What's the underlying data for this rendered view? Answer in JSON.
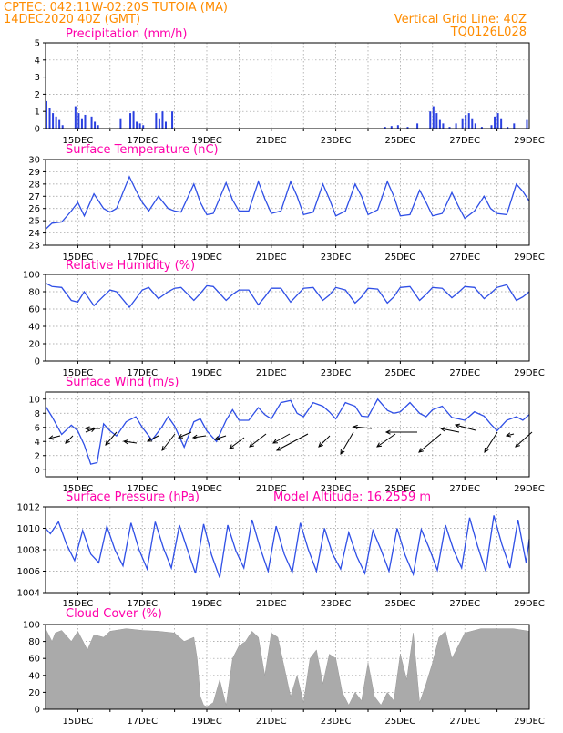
{
  "header": {
    "line1": "CPTEC:   042:11W-02:20S   TUTOIA (MA)",
    "line2": "14DEC2020 40Z (GMT)",
    "grid_note": "Vertical Grid Line: 40Z",
    "code": "TQ0126L028"
  },
  "x_axis": {
    "start_day": 14,
    "end_day": 29,
    "tick_labels": [
      "15DEC",
      "17DEC",
      "19DEC",
      "21DEC",
      "23DEC",
      "25DEC",
      "27DEC",
      "29DEC"
    ],
    "tick_days": [
      15,
      17,
      19,
      21,
      23,
      25,
      27,
      29
    ]
  },
  "colors": {
    "line": "#2f4fe6",
    "bar": "#2a40e0",
    "cloud": "#aaaaaa",
    "header": "#ff8c00",
    "title": "#ff00aa"
  },
  "chart_data": [
    {
      "type": "bar",
      "title": "Precipitation (mm/h)",
      "ylim": [
        0,
        5
      ],
      "yticks": [
        "0",
        "1",
        "2",
        "3",
        "4",
        "5"
      ],
      "grid": true,
      "x": [
        14.0,
        14.1,
        14.2,
        14.3,
        14.4,
        14.5,
        14.9,
        15.0,
        15.1,
        15.2,
        15.4,
        15.5,
        15.6,
        16.3,
        16.6,
        16.7,
        16.8,
        16.9,
        17.0,
        17.4,
        17.5,
        17.6,
        17.7,
        17.9,
        24.5,
        24.7,
        24.9,
        25.2,
        25.5,
        25.9,
        26.0,
        26.1,
        26.2,
        26.3,
        26.5,
        26.7,
        26.9,
        27.0,
        27.1,
        27.2,
        27.3,
        27.5,
        27.8,
        27.9,
        28.0,
        28.1,
        28.3,
        28.5,
        28.9
      ],
      "values": [
        1.6,
        1.2,
        0.9,
        0.7,
        0.5,
        0.2,
        1.3,
        0.9,
        0.6,
        0.8,
        0.7,
        0.4,
        0.2,
        0.6,
        0.9,
        1.0,
        0.4,
        0.3,
        0.2,
        0.9,
        0.6,
        1.0,
        0.4,
        1.0,
        0.1,
        0.15,
        0.2,
        0.1,
        0.3,
        1.0,
        1.3,
        0.9,
        0.5,
        0.3,
        0.1,
        0.3,
        0.6,
        0.8,
        0.9,
        0.6,
        0.3,
        0.1,
        0.2,
        0.7,
        0.9,
        0.6,
        0.1,
        0.3,
        0.5
      ]
    },
    {
      "type": "line",
      "title": "Surface Temperature (nC)",
      "ylim": [
        23,
        30
      ],
      "yticks": [
        "23",
        "24",
        "25",
        "26",
        "27",
        "28",
        "29",
        "30"
      ],
      "grid": true,
      "x": [
        14.0,
        14.2,
        14.5,
        14.8,
        15.0,
        15.2,
        15.5,
        15.8,
        16.0,
        16.2,
        16.6,
        16.8,
        17.0,
        17.2,
        17.5,
        17.8,
        18.0,
        18.2,
        18.6,
        18.8,
        19.0,
        19.2,
        19.6,
        19.8,
        20.0,
        20.3,
        20.6,
        20.8,
        21.0,
        21.3,
        21.6,
        21.8,
        22.0,
        22.3,
        22.6,
        22.8,
        23.0,
        23.3,
        23.6,
        23.8,
        24.0,
        24.3,
        24.6,
        24.8,
        25.0,
        25.3,
        25.6,
        25.8,
        26.0,
        26.3,
        26.6,
        26.8,
        27.0,
        27.3,
        27.6,
        27.8,
        28.0,
        28.3,
        28.6,
        28.8,
        29.0
      ],
      "values": [
        24.3,
        24.8,
        24.9,
        25.8,
        26.5,
        25.4,
        27.2,
        26.0,
        25.7,
        26.0,
        28.6,
        27.5,
        26.5,
        25.8,
        27.0,
        26.0,
        25.8,
        25.7,
        28.0,
        26.5,
        25.5,
        25.6,
        28.1,
        26.7,
        25.8,
        25.8,
        28.2,
        26.8,
        25.6,
        25.8,
        28.2,
        27.0,
        25.5,
        25.7,
        28.0,
        26.8,
        25.4,
        25.8,
        28.0,
        27.0,
        25.5,
        25.9,
        28.2,
        27.0,
        25.4,
        25.5,
        27.5,
        26.5,
        25.4,
        25.6,
        27.3,
        26.2,
        25.2,
        25.8,
        27.0,
        26.0,
        25.6,
        25.5,
        28.0,
        27.4,
        26.6
      ]
    },
    {
      "type": "line",
      "title": "Relative Humidity (%)",
      "ylim": [
        0,
        100
      ],
      "yticks": [
        "0",
        "20",
        "40",
        "60",
        "80",
        "100"
      ],
      "grid": true,
      "x": [
        14.0,
        14.2,
        14.5,
        14.8,
        15.0,
        15.2,
        15.5,
        15.8,
        16.0,
        16.2,
        16.6,
        16.8,
        17.0,
        17.2,
        17.5,
        17.8,
        18.0,
        18.2,
        18.6,
        18.8,
        19.0,
        19.2,
        19.6,
        19.8,
        20.0,
        20.3,
        20.6,
        20.8,
        21.0,
        21.3,
        21.6,
        21.8,
        22.0,
        22.3,
        22.6,
        22.8,
        23.0,
        23.3,
        23.6,
        23.8,
        24.0,
        24.3,
        24.6,
        24.8,
        25.0,
        25.3,
        25.6,
        25.8,
        26.0,
        26.3,
        26.6,
        26.8,
        27.0,
        27.3,
        27.6,
        27.8,
        28.0,
        28.3,
        28.6,
        28.8,
        29.0
      ],
      "values": [
        90,
        86,
        85,
        70,
        68,
        80,
        64,
        75,
        82,
        80,
        62,
        72,
        82,
        85,
        72,
        80,
        84,
        85,
        70,
        78,
        87,
        86,
        70,
        77,
        82,
        82,
        65,
        74,
        84,
        84,
        68,
        76,
        84,
        85,
        70,
        76,
        85,
        82,
        67,
        74,
        84,
        83,
        67,
        74,
        85,
        86,
        70,
        77,
        85,
        84,
        73,
        79,
        86,
        85,
        72,
        78,
        85,
        88,
        70,
        74,
        80
      ]
    },
    {
      "type": "line",
      "title": "Surface Wind (m/s)",
      "ylim": [
        -1,
        11
      ],
      "yticks": [
        "0",
        "2",
        "4",
        "6",
        "8",
        "10"
      ],
      "grid": true,
      "x": [
        14.0,
        14.2,
        14.5,
        14.8,
        15.0,
        15.2,
        15.4,
        15.6,
        15.8,
        16.0,
        16.2,
        16.5,
        16.8,
        17.0,
        17.3,
        17.6,
        17.8,
        18.0,
        18.3,
        18.6,
        18.8,
        19.0,
        19.3,
        19.6,
        19.8,
        20.0,
        20.3,
        20.6,
        20.8,
        21.0,
        21.3,
        21.6,
        21.8,
        22.0,
        22.3,
        22.6,
        22.8,
        23.0,
        23.3,
        23.6,
        23.8,
        24.0,
        24.3,
        24.6,
        24.8,
        25.0,
        25.3,
        25.6,
        25.8,
        26.0,
        26.3,
        26.6,
        26.8,
        27.0,
        27.3,
        27.6,
        27.8,
        28.0,
        28.3,
        28.6,
        28.8,
        29.0
      ],
      "values": [
        9.0,
        7.5,
        5.0,
        6.3,
        5.5,
        3.5,
        0.8,
        1.0,
        6.5,
        5.5,
        4.8,
        6.8,
        7.5,
        6.0,
        4.2,
        6.0,
        7.5,
        6.2,
        3.2,
        6.8,
        7.2,
        5.5,
        4.0,
        7.0,
        8.5,
        7.0,
        7.0,
        8.8,
        7.8,
        7.2,
        9.5,
        9.8,
        8.0,
        7.5,
        9.5,
        9.0,
        8.2,
        7.2,
        9.5,
        9.0,
        7.6,
        7.5,
        10.0,
        8.4,
        8.0,
        8.2,
        9.5,
        8.0,
        7.5,
        8.5,
        9.0,
        7.4,
        7.2,
        7.0,
        8.2,
        7.6,
        6.5,
        5.5,
        7.0,
        7.5,
        7.0,
        7.8
      ]
    },
    {
      "type": "line",
      "title": "Surface Pressure (hPa)",
      "annotation": "Model Altitude: 16.2559 m",
      "ylim": [
        1004,
        1012
      ],
      "yticks": [
        "1004",
        "1006",
        "1008",
        "1010",
        "1012"
      ],
      "grid": true,
      "x": [
        14.0,
        14.15,
        14.4,
        14.65,
        14.9,
        15.15,
        15.4,
        15.65,
        15.9,
        16.15,
        16.4,
        16.65,
        16.9,
        17.15,
        17.4,
        17.65,
        17.9,
        18.15,
        18.4,
        18.65,
        18.9,
        19.15,
        19.4,
        19.65,
        19.9,
        20.15,
        20.4,
        20.65,
        20.9,
        21.15,
        21.4,
        21.65,
        21.9,
        22.15,
        22.4,
        22.65,
        22.9,
        23.15,
        23.4,
        23.65,
        23.9,
        24.15,
        24.4,
        24.65,
        24.9,
        25.15,
        25.4,
        25.65,
        25.9,
        26.15,
        26.4,
        26.65,
        26.9,
        27.15,
        27.4,
        27.65,
        27.9,
        28.15,
        28.4,
        28.65,
        28.9,
        29.0
      ],
      "values": [
        1010.0,
        1009.5,
        1010.6,
        1008.5,
        1007.0,
        1009.8,
        1007.6,
        1006.8,
        1010.2,
        1008.0,
        1006.5,
        1010.5,
        1008.0,
        1006.2,
        1010.6,
        1008.2,
        1006.3,
        1010.3,
        1008.0,
        1005.8,
        1010.4,
        1007.5,
        1005.4,
        1010.3,
        1007.9,
        1006.3,
        1010.8,
        1008.2,
        1006.0,
        1010.2,
        1007.6,
        1005.9,
        1010.5,
        1008.0,
        1006.0,
        1010.0,
        1007.6,
        1006.2,
        1009.6,
        1007.4,
        1005.8,
        1009.8,
        1008.0,
        1006.0,
        1010.0,
        1007.5,
        1005.7,
        1009.9,
        1008.1,
        1006.1,
        1010.3,
        1008.0,
        1006.3,
        1011.0,
        1008.3,
        1006.0,
        1011.2,
        1008.5,
        1006.3,
        1010.8,
        1006.8,
        1009.0
      ]
    },
    {
      "type": "area",
      "title": "Cloud Cover (%)",
      "ylim": [
        0,
        100
      ],
      "yticks": [
        "0",
        "20",
        "40",
        "60",
        "80",
        "100"
      ],
      "grid": true,
      "x": [
        14.0,
        14.2,
        14.3,
        14.5,
        14.8,
        15.0,
        15.3,
        15.5,
        15.8,
        16.0,
        16.5,
        17.0,
        17.5,
        18.0,
        18.3,
        18.6,
        18.7,
        18.8,
        18.9,
        19.0,
        19.2,
        19.4,
        19.6,
        19.8,
        20.0,
        20.2,
        20.4,
        20.6,
        20.8,
        21.0,
        21.2,
        21.4,
        21.6,
        21.8,
        22.0,
        22.2,
        22.4,
        22.6,
        22.8,
        23.0,
        23.2,
        23.4,
        23.6,
        23.8,
        24.0,
        24.2,
        24.4,
        24.6,
        24.8,
        25.0,
        25.2,
        25.4,
        25.6,
        25.8,
        26.0,
        26.2,
        26.4,
        26.6,
        26.8,
        27.0,
        27.5,
        28.0,
        28.5,
        29.0
      ],
      "values": [
        95,
        80,
        90,
        93,
        80,
        92,
        70,
        88,
        85,
        92,
        95,
        93,
        92,
        90,
        80,
        85,
        60,
        15,
        5,
        3,
        8,
        35,
        5,
        60,
        75,
        80,
        92,
        85,
        40,
        90,
        85,
        50,
        15,
        40,
        8,
        60,
        70,
        30,
        65,
        60,
        20,
        5,
        20,
        10,
        55,
        15,
        5,
        20,
        10,
        65,
        35,
        90,
        8,
        30,
        55,
        85,
        92,
        60,
        75,
        90,
        95,
        95,
        95,
        92
      ]
    }
  ]
}
